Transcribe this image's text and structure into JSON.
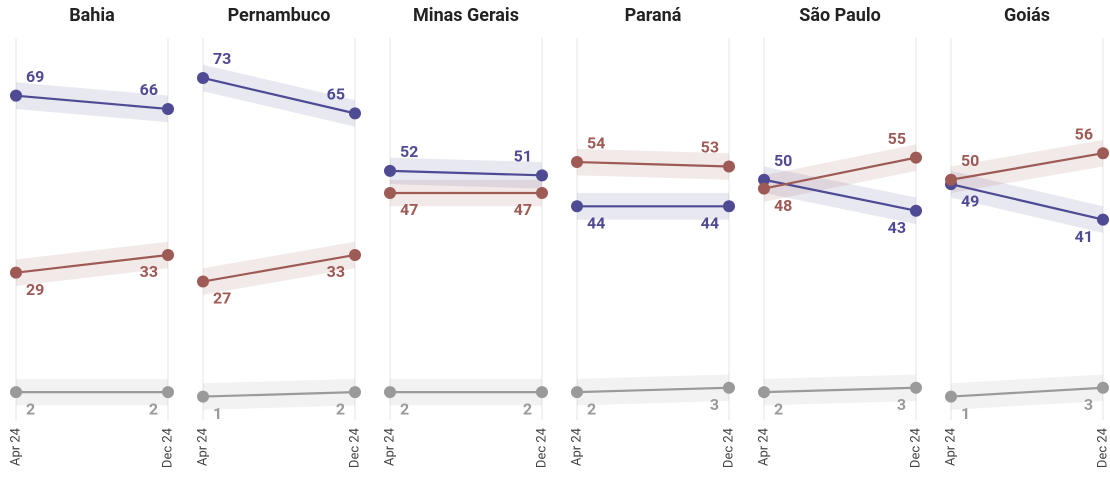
{
  "chart_data": [
    {
      "type": "line",
      "title": "Bahia",
      "categories": [
        "Apr 24",
        "Dec 24"
      ],
      "ylim": [
        0,
        80
      ],
      "series": [
        {
          "color": "#4f4a94",
          "values": [
            69,
            66
          ]
        },
        {
          "color": "#9e5a55",
          "values": [
            29,
            33
          ]
        },
        {
          "color": "#9a9a9a",
          "values": [
            2,
            2
          ]
        }
      ]
    },
    {
      "type": "line",
      "title": "Pernambuco",
      "categories": [
        "Apr 24",
        "Dec 24"
      ],
      "ylim": [
        0,
        80
      ],
      "series": [
        {
          "color": "#4f4a94",
          "values": [
            73,
            65
          ]
        },
        {
          "color": "#9e5a55",
          "values": [
            27,
            33
          ]
        },
        {
          "color": "#9a9a9a",
          "values": [
            1,
            2
          ]
        }
      ]
    },
    {
      "type": "line",
      "title": "Minas Gerais",
      "categories": [
        "Apr 24",
        "Dec 24"
      ],
      "ylim": [
        0,
        80
      ],
      "series": [
        {
          "color": "#4f4a94",
          "values": [
            52,
            51
          ]
        },
        {
          "color": "#9e5a55",
          "values": [
            47,
            47
          ]
        },
        {
          "color": "#9a9a9a",
          "values": [
            2,
            2
          ]
        }
      ]
    },
    {
      "type": "line",
      "title": "Paraná",
      "categories": [
        "Apr 24",
        "Dec 24"
      ],
      "ylim": [
        0,
        80
      ],
      "series": [
        {
          "color": "#4f4a94",
          "values": [
            44,
            44
          ]
        },
        {
          "color": "#9e5a55",
          "values": [
            54,
            53
          ]
        },
        {
          "color": "#9a9a9a",
          "values": [
            2,
            3
          ]
        }
      ]
    },
    {
      "type": "line",
      "title": "São Paulo",
      "categories": [
        "Apr 24",
        "Dec 24"
      ],
      "ylim": [
        0,
        80
      ],
      "series": [
        {
          "color": "#4f4a94",
          "values": [
            50,
            43
          ]
        },
        {
          "color": "#9e5a55",
          "values": [
            48,
            55
          ]
        },
        {
          "color": "#9a9a9a",
          "values": [
            2,
            3
          ]
        }
      ]
    },
    {
      "type": "line",
      "title": "Goiás",
      "categories": [
        "Apr 24",
        "Dec 24"
      ],
      "ylim": [
        0,
        80
      ],
      "series": [
        {
          "color": "#4f4a94",
          "values": [
            49,
            41
          ]
        },
        {
          "color": "#9e5a55",
          "values": [
            50,
            56
          ]
        },
        {
          "color": "#9a9a9a",
          "values": [
            1,
            3
          ]
        }
      ]
    }
  ]
}
